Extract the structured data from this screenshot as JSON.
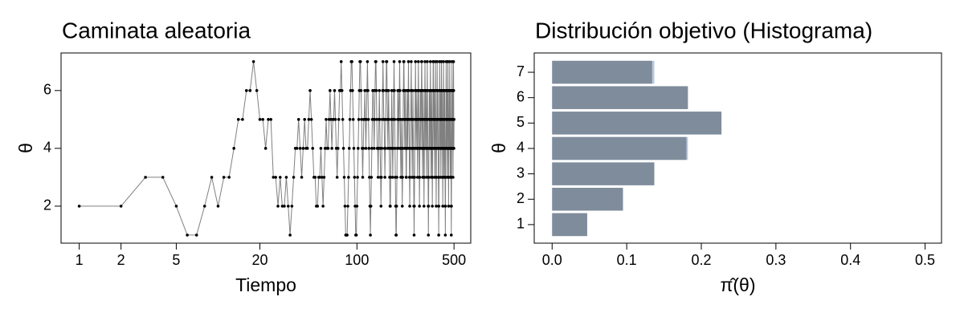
{
  "chart_data": [
    {
      "type": "line",
      "title": "Caminata aleatoria",
      "xlabel": "Tiempo",
      "ylabel": "θ",
      "xscale": "log",
      "xlim": [
        0.74,
        660
      ],
      "xticks": [
        1,
        2,
        5,
        20,
        100,
        500
      ],
      "ylim": [
        0.72,
        7.3
      ],
      "yticks": [
        2,
        4,
        6
      ],
      "line_color": "#808080",
      "marker_color": "#000000",
      "x": [
        1,
        2,
        3,
        4,
        5,
        6,
        7,
        8,
        9,
        10,
        11,
        12,
        13,
        14,
        15,
        16,
        17,
        18,
        19,
        20,
        21,
        22,
        23,
        24,
        25,
        26,
        27,
        28,
        29,
        30,
        31,
        32,
        33,
        34,
        35,
        36,
        37,
        38,
        39,
        40,
        41,
        42,
        43,
        44,
        45,
        46,
        47,
        48,
        49,
        50,
        51,
        52,
        53,
        54,
        55,
        56,
        57,
        58,
        59,
        60,
        61,
        62,
        63,
        64,
        65,
        66,
        67,
        68,
        69,
        70,
        71,
        72,
        73,
        74,
        75,
        76,
        77,
        78,
        79,
        80,
        81,
        82,
        83,
        84,
        85,
        86,
        87,
        88,
        89,
        90,
        91,
        92,
        93,
        94,
        95,
        96,
        97,
        98,
        99,
        100,
        101,
        102,
        103,
        104,
        105,
        106,
        107,
        108,
        109,
        110,
        111,
        112,
        113,
        114,
        115,
        116,
        117,
        118,
        119,
        120,
        121,
        122,
        123,
        124,
        125,
        126,
        127,
        128,
        129,
        130,
        131,
        132,
        133,
        134,
        135,
        136,
        137,
        138,
        139,
        140,
        141,
        142,
        143,
        144,
        145,
        146,
        147,
        148,
        149,
        150,
        151,
        152,
        153,
        154,
        155,
        156,
        157,
        158,
        159,
        160,
        161,
        162,
        163,
        164,
        165,
        166,
        167,
        168,
        169,
        170,
        171,
        172,
        173,
        174,
        175,
        176,
        177,
        178,
        179,
        180,
        181,
        182,
        183,
        184,
        185,
        186,
        187,
        188,
        189,
        190,
        191,
        192,
        193,
        194,
        195,
        196,
        197,
        198,
        199,
        200,
        201,
        202,
        203,
        204,
        205,
        206,
        207,
        208,
        209,
        210,
        211,
        212,
        213,
        214,
        215,
        216,
        217,
        218,
        219,
        220,
        221,
        222,
        223,
        224,
        225,
        226,
        227,
        228,
        229,
        230,
        231,
        232,
        233,
        234,
        235,
        236,
        237,
        238,
        239,
        240,
        241,
        242,
        243,
        244,
        245,
        246,
        247,
        248,
        249,
        250,
        251,
        252,
        253,
        254,
        255,
        256,
        257,
        258,
        259,
        260,
        261,
        262,
        263,
        264,
        265,
        266,
        267,
        268,
        269,
        270,
        271,
        272,
        273,
        274,
        275,
        276,
        277,
        278,
        279,
        280,
        281,
        282,
        283,
        284,
        285,
        286,
        287,
        288,
        289,
        290,
        291,
        292,
        293,
        294,
        295,
        296,
        297,
        298,
        299,
        300,
        301,
        302,
        303,
        304,
        305,
        306,
        307,
        308,
        309,
        310,
        311,
        312,
        313,
        314,
        315,
        316,
        317,
        318,
        319,
        320,
        321,
        322,
        323,
        324,
        325,
        326,
        327,
        328,
        329,
        330,
        331,
        332,
        333,
        334,
        335,
        336,
        337,
        338,
        339,
        340,
        341,
        342,
        343,
        344,
        345,
        346,
        347,
        348,
        349,
        350,
        351,
        352,
        353,
        354,
        355,
        356,
        357,
        358,
        359,
        360,
        361,
        362,
        363,
        364,
        365,
        366,
        367,
        368,
        369,
        370,
        371,
        372,
        373,
        374,
        375,
        376,
        377,
        378,
        379,
        380,
        381,
        382,
        383,
        384,
        385,
        386,
        387,
        388,
        389,
        390,
        391,
        392,
        393,
        394,
        395,
        396,
        397,
        398,
        399,
        400,
        401,
        402,
        403,
        404,
        405,
        406,
        407,
        408,
        409,
        410,
        411,
        412,
        413,
        414,
        415,
        416,
        417,
        418,
        419,
        420,
        421,
        422,
        423,
        424,
        425,
        426,
        427,
        428,
        429,
        430,
        431,
        432,
        433,
        434,
        435,
        436,
        437,
        438,
        439,
        440,
        441,
        442,
        443,
        444,
        445,
        446,
        447,
        448,
        449,
        450,
        451,
        452,
        453,
        454,
        455,
        456,
        457,
        458,
        459,
        460,
        461,
        462,
        463,
        464,
        465,
        466,
        467,
        468,
        469,
        470,
        471,
        472,
        473,
        474,
        475,
        476,
        477,
        478,
        479,
        480,
        481,
        482,
        483,
        484,
        485,
        486,
        487,
        488,
        489,
        490,
        491,
        492,
        493,
        494,
        495,
        496,
        497,
        498,
        499,
        500
      ],
      "values": [
        2,
        2,
        3,
        3,
        2,
        1,
        1,
        2,
        3,
        2,
        3,
        3,
        4,
        5,
        5,
        6,
        6,
        7,
        6,
        5,
        5,
        4,
        5,
        5,
        3,
        3,
        2,
        3,
        2,
        2,
        3,
        2,
        1,
        2,
        3,
        4,
        4,
        5,
        4,
        3,
        4,
        5,
        4,
        4,
        5,
        6,
        5,
        4,
        3,
        3,
        2,
        2,
        3,
        3,
        4,
        3,
        2,
        3,
        4,
        5,
        4,
        4,
        5,
        6,
        5,
        4,
        5,
        5,
        6,
        5,
        4,
        3,
        4,
        5,
        6,
        6,
        7,
        6,
        5,
        4,
        3,
        2,
        1,
        1,
        1,
        2,
        3,
        4,
        5,
        6,
        7,
        7,
        6,
        5,
        4,
        3,
        2,
        1,
        1,
        2,
        3,
        4,
        5,
        6,
        7,
        7,
        6,
        5,
        4,
        3,
        4,
        5,
        5,
        6,
        5,
        4,
        5,
        6,
        7,
        6,
        5,
        4,
        3,
        2,
        1,
        2,
        3,
        4,
        5,
        6,
        6,
        5,
        4,
        5,
        6,
        7,
        7,
        6,
        5,
        4,
        4,
        3,
        4,
        5,
        6,
        5,
        4,
        3,
        2,
        3,
        4,
        5,
        6,
        7,
        6,
        5,
        5,
        4,
        3,
        4,
        5,
        6,
        7,
        7,
        6,
        5,
        4,
        5,
        6,
        5,
        4,
        3,
        2,
        2,
        3,
        4,
        5,
        6,
        5,
        4,
        3,
        4,
        5,
        6,
        7,
        6,
        5,
        4,
        3,
        2,
        1,
        1,
        2,
        3,
        4,
        5,
        6,
        6,
        5,
        4,
        5,
        6,
        7,
        6,
        5,
        4,
        3,
        4,
        5,
        4,
        3,
        2,
        3,
        4,
        5,
        6,
        7,
        7,
        6,
        5,
        4,
        5,
        6,
        5,
        4,
        3,
        3,
        4,
        5,
        6,
        5,
        4,
        5,
        6,
        7,
        6,
        5,
        4,
        3,
        2,
        3,
        4,
        5,
        5,
        6,
        7,
        6,
        5,
        4,
        3,
        4,
        5,
        6,
        5,
        4,
        3,
        2,
        1,
        2,
        3,
        4,
        5,
        6,
        7,
        6,
        5,
        4,
        5,
        5,
        6,
        5,
        4,
        3,
        4,
        5,
        6,
        7,
        6,
        5,
        4,
        3,
        2,
        3,
        4,
        5,
        6,
        6,
        5,
        4,
        5,
        6,
        7,
        7,
        6,
        5,
        4,
        3,
        4,
        5,
        6,
        5,
        4,
        3,
        2,
        3,
        4,
        5,
        6,
        7,
        6,
        5,
        4,
        5,
        6,
        5,
        4,
        3,
        4,
        5,
        6,
        7,
        6,
        5,
        4,
        3,
        2,
        1,
        2,
        3,
        4,
        5,
        6,
        5,
        4,
        4,
        5,
        6,
        7,
        6,
        5,
        4,
        3,
        4,
        5,
        6,
        5,
        4,
        3,
        2,
        3,
        4,
        5,
        6,
        7,
        7,
        6,
        5,
        4,
        5,
        6,
        5,
        4,
        3,
        4,
        5,
        6,
        7,
        6,
        5,
        4,
        3,
        2,
        3,
        4,
        5,
        5,
        6,
        7,
        6,
        5,
        4,
        5,
        6,
        5,
        4,
        3,
        2,
        1,
        2,
        3,
        4,
        5,
        6,
        7,
        6,
        5,
        4,
        5,
        6,
        5,
        4,
        3,
        4,
        5,
        6,
        7,
        6,
        5,
        4,
        5,
        6,
        5,
        4,
        3,
        2,
        3,
        4,
        5,
        6,
        7,
        6,
        5,
        4,
        3,
        4,
        5,
        6,
        6,
        5,
        4,
        3,
        2,
        1,
        2,
        3,
        4,
        5,
        6,
        7,
        6,
        5,
        4,
        5,
        6,
        5,
        4,
        3,
        4,
        5,
        6,
        7,
        7,
        6,
        5,
        4,
        3,
        2,
        3,
        4,
        5,
        6,
        5,
        4,
        5,
        6,
        7,
        6,
        5,
        4,
        3,
        4,
        5,
        6,
        5,
        4,
        3,
        2,
        1,
        2,
        3,
        4,
        5,
        6,
        7,
        6,
        5,
        4,
        5,
        6,
        5,
        4,
        3,
        4,
        5,
        6,
        7,
        6,
        5,
        4,
        5
      ]
    },
    {
      "type": "barh",
      "title": "Distribución objetivo (Histograma)",
      "xlabel": "π̂(θ)",
      "ylabel": "θ",
      "xlim": [
        -0.024,
        0.522
      ],
      "xticks": [
        {
          "value": 0,
          "label": "0.0"
        },
        0.1,
        0.2,
        0.3,
        0.4,
        0.5
      ],
      "ylim": [
        0.27,
        7.76
      ],
      "yticks": [
        1,
        2,
        3,
        4,
        5,
        6,
        7
      ],
      "y": [
        1,
        2,
        3,
        4,
        5,
        6,
        7
      ],
      "series": [
        {
          "color": "#b7c9de",
          "values": [
            0.047,
            0.094,
            0.136,
            0.182,
            0.227,
            0.182,
            0.137
          ]
        },
        {
          "color": "#7f8c9b",
          "values": [
            0.047,
            0.095,
            0.137,
            0.18,
            0.227,
            0.182,
            0.134
          ]
        }
      ]
    }
  ]
}
